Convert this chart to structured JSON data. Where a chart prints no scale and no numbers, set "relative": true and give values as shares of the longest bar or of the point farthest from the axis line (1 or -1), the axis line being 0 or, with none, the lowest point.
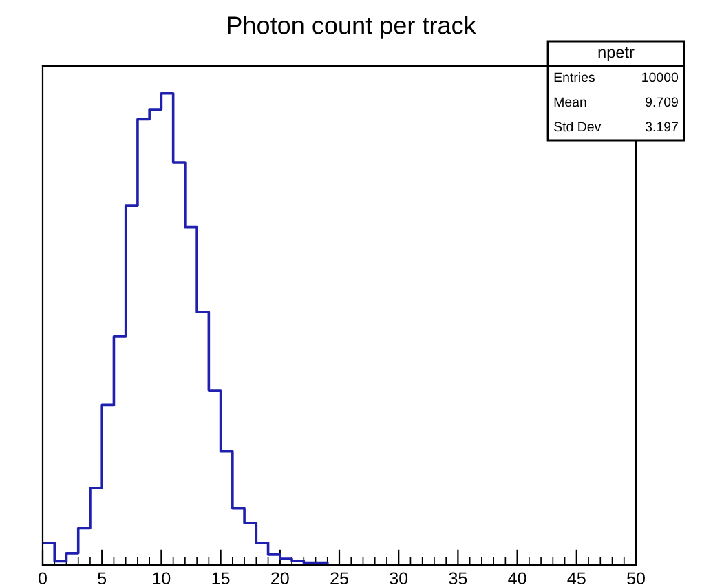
{
  "chart_data": {
    "type": "step",
    "title": "Photon count per track",
    "relative": true,
    "x": [
      0,
      1,
      2,
      3,
      4,
      5,
      6,
      7,
      8,
      9,
      10,
      11,
      12,
      13,
      14,
      15,
      16,
      17,
      18,
      19,
      20,
      21,
      22,
      23,
      24,
      25,
      26,
      27,
      28,
      29,
      30,
      31,
      32,
      33,
      34,
      35,
      36,
      37,
      38,
      39,
      40,
      41,
      42,
      43,
      44,
      45,
      46,
      47,
      48,
      49
    ],
    "values": [
      0.047,
      0.008,
      0.025,
      0.078,
      0.163,
      0.339,
      0.484,
      0.762,
      0.945,
      0.966,
      1,
      0.854,
      0.716,
      0.536,
      0.37,
      0.241,
      0.12,
      0.089,
      0.047,
      0.022,
      0.013,
      0.009,
      0.005,
      0.005,
      0,
      0,
      0,
      0,
      0,
      0,
      0,
      0,
      0,
      0,
      0,
      0,
      0,
      0,
      0,
      0,
      0,
      0,
      0,
      0,
      0,
      0,
      0,
      0,
      0,
      0
    ],
    "color": "#1f1fb0",
    "xlim": [
      0,
      50
    ],
    "xticks": [
      0,
      5,
      10,
      15,
      20,
      25,
      30,
      35,
      40,
      45,
      50
    ],
    "tick_labels": "x",
    "annotations": [
      "npetr",
      "Entries",
      "10000",
      "Mean",
      "9.709",
      "Std Dev",
      "3.197"
    ]
  }
}
